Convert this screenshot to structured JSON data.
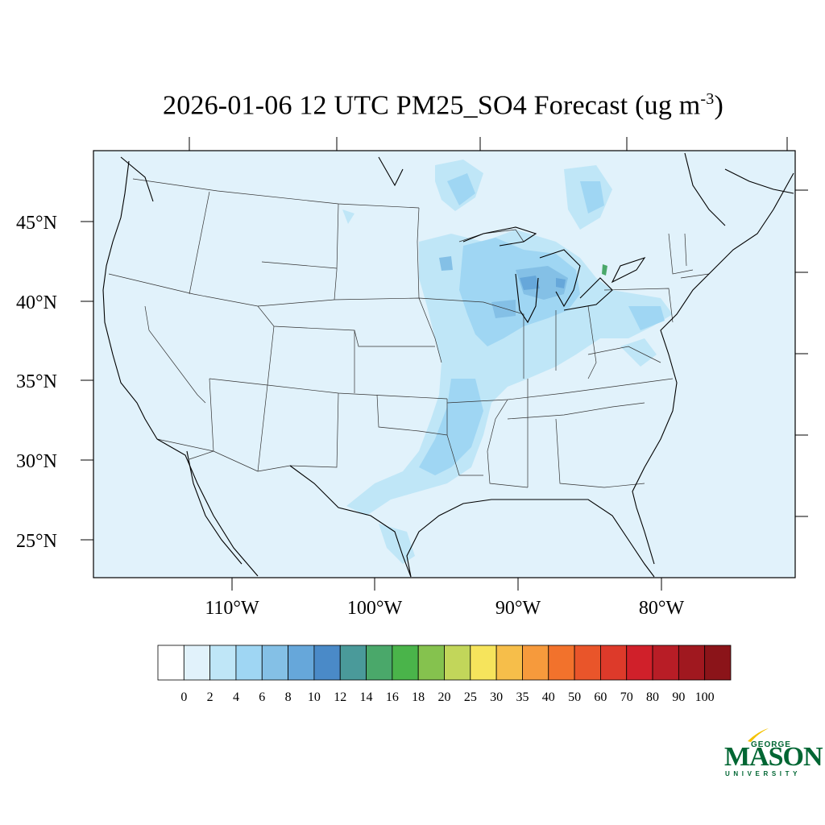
{
  "title": {
    "main": "2026-01-06 12 UTC PM25_SO4 Forecast (ug m",
    "sup": "-3",
    "close": ")"
  },
  "map": {
    "lat_labels": [
      "45°N",
      "40°N",
      "35°N",
      "30°N",
      "25°N"
    ],
    "lon_labels": [
      "110°W",
      "100°W",
      "90°W",
      "80°W"
    ],
    "background_color": "#e1f2fb"
  },
  "colorbar": {
    "labels": [
      "0",
      "2",
      "4",
      "6",
      "8",
      "10",
      "12",
      "14",
      "16",
      "18",
      "20",
      "25",
      "30",
      "35",
      "40",
      "50",
      "60",
      "70",
      "80",
      "90",
      "100"
    ],
    "colors": [
      "#ffffff",
      "#e1f2fb",
      "#bfe6f7",
      "#9fd6f3",
      "#84c0e6",
      "#66a7da",
      "#4a8ac8",
      "#4a9a9a",
      "#4aa86a",
      "#4ab44a",
      "#85c24e",
      "#c2d65a",
      "#f6e45c",
      "#f6be4a",
      "#f69a3c",
      "#f2722c",
      "#e9552a",
      "#dd3a2a",
      "#d0202a",
      "#b81d26",
      "#a0181f",
      "#8b1419"
    ]
  },
  "logo": {
    "line1": "GEORGE",
    "line2": "MASON",
    "line3": "UNIVERSITY",
    "color": "#006633",
    "accent": "#f4c200"
  }
}
